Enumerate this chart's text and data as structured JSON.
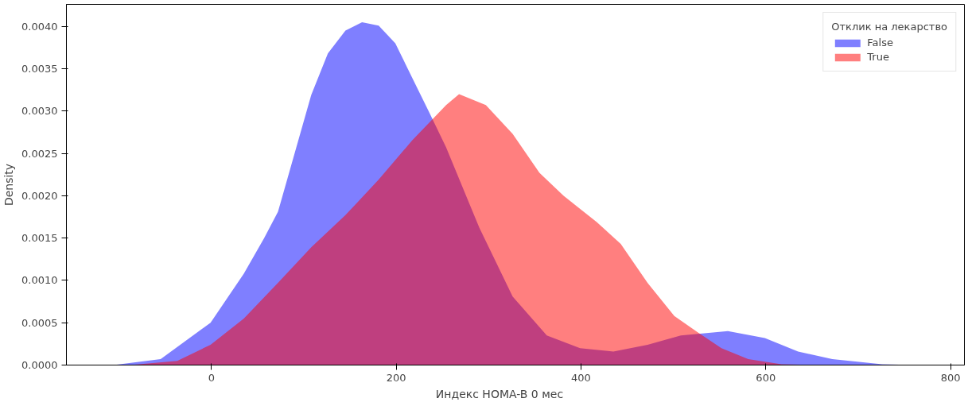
{
  "chart_data": {
    "type": "area",
    "xlabel": "Индекс HOMA-B          0 мес",
    "ylabel": "Density",
    "legend_title": "Отклик на лекарство",
    "legend": "top right",
    "grid": false,
    "xlim": [
      -157,
      815
    ],
    "ylim": [
      0,
      0.00426
    ],
    "xticks": [
      0,
      200,
      400,
      600,
      800
    ],
    "yticks": [
      {
        "value": 0,
        "label": "0.0000"
      },
      {
        "value": 0.0005,
        "label": "0.0005"
      },
      {
        "value": 0.001,
        "label": "0.0010"
      },
      {
        "value": 0.0015,
        "label": "0.0015"
      },
      {
        "value": 0.002,
        "label": "0.0020"
      },
      {
        "value": 0.0025,
        "label": "0.0025"
      },
      {
        "value": 0.003,
        "label": "0.0030"
      },
      {
        "value": 0.0035,
        "label": "0.0035"
      },
      {
        "value": 0.004,
        "label": "0.0040"
      }
    ],
    "series": [
      {
        "name": "False",
        "color": "#0000ff",
        "x": [
          -106,
          -55,
          -1,
          35,
          57,
          72,
          90,
          108,
          126,
          145,
          163,
          181,
          199,
          217,
          235,
          254,
          290,
          326,
          363,
          399,
          435,
          472,
          508,
          559,
          599,
          635,
          672,
          726,
          763
        ],
        "values": [
          0,
          7e-05,
          0.0005,
          0.00108,
          0.0015,
          0.00181,
          0.0025,
          0.00319,
          0.00368,
          0.00395,
          0.00405,
          0.00401,
          0.0038,
          0.0034,
          0.003,
          0.00257,
          0.00162,
          0.00081,
          0.00035,
          0.0002,
          0.00016,
          0.00024,
          0.00035,
          0.0004,
          0.00032,
          0.00016,
          7e-05,
          1e-05,
          0
        ]
      },
      {
        "name": "True",
        "color": "#ff0000",
        "x": [
          -88,
          -37,
          -1,
          35,
          72,
          108,
          145,
          181,
          217,
          254,
          268,
          297,
          326,
          355,
          381,
          417,
          443,
          472,
          501,
          526,
          552,
          581,
          617,
          654
        ],
        "values": [
          0,
          5e-05,
          0.00024,
          0.00055,
          0.00097,
          0.00139,
          0.00177,
          0.00219,
          0.00265,
          0.00307,
          0.0032,
          0.00307,
          0.00273,
          0.00227,
          0.002,
          0.00169,
          0.00143,
          0.00097,
          0.00058,
          0.00039,
          0.0002,
          7e-05,
          1e-05,
          0
        ]
      }
    ]
  }
}
